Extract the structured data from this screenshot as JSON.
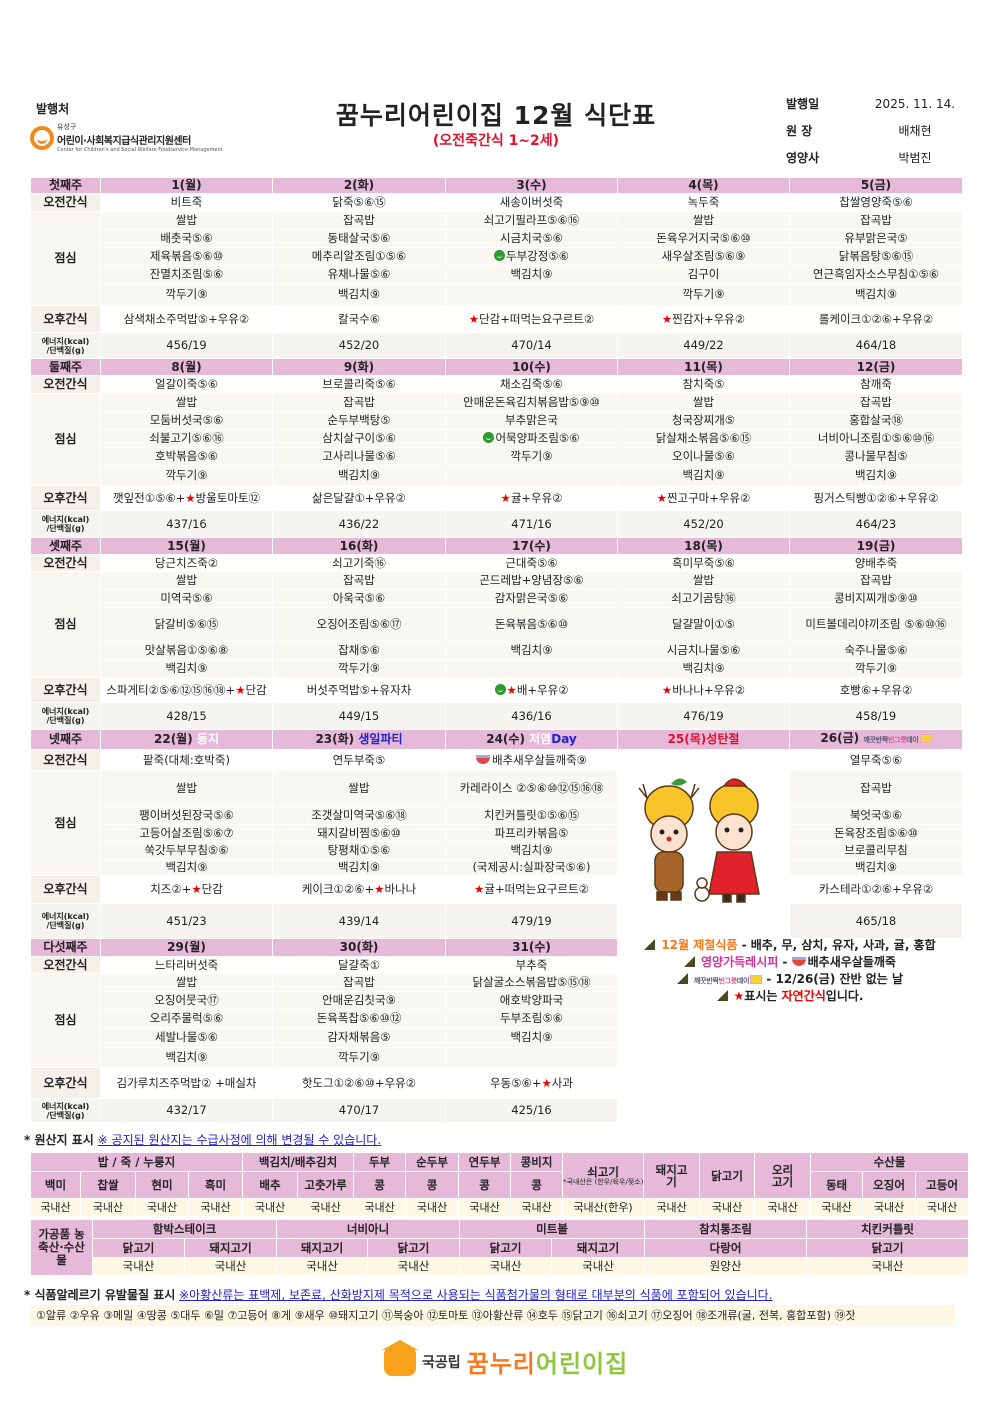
{
  "header": {
    "publisher_label": "발행처",
    "logo": {
      "district": "유성구",
      "name": "어린이·사회복지급식관리지원센터",
      "name_en": "Center for Children's and Social Welfare Foodservice Management"
    },
    "title": "꿈누리어린이집 12월 식단표",
    "subtitle": "(오전죽간식 1~2세)",
    "meta": [
      {
        "label": "발행일",
        "value": "2025. 11. 14."
      },
      {
        "label": "원 장",
        "value": "배채현"
      },
      {
        "label": "영양사",
        "value": "박범진"
      }
    ]
  },
  "row_labels": {
    "morning": "오전간식",
    "lunch": "점심",
    "afternoon": "오후간식",
    "energy_1": "에너지(kcal)",
    "energy_2": "/단백질(g)"
  },
  "colors": {
    "header_bg": "#e6b9d9",
    "star": "#e00000",
    "smile": "#2c9a2c",
    "holiday": "#e0102a",
    "event_blue": "#2222cc"
  },
  "weeks": [
    {
      "label": "첫째주",
      "days": [
        {
          "date": "1(월)"
        },
        {
          "date": "2(화)"
        },
        {
          "date": "3(수)"
        },
        {
          "date": "4(목)"
        },
        {
          "date": "5(금)"
        }
      ],
      "morning": [
        "비트죽",
        "닭죽⑤⑥⑮",
        "새송이버섯죽",
        "녹두죽",
        "찹쌀영양죽⑤⑥"
      ],
      "lunch": [
        [
          "쌀밥",
          "배춧국⑤⑥",
          "제육볶음⑤⑥⑩",
          "잔멸치조림⑤⑥",
          "깍두기⑨"
        ],
        [
          "잡곡밥",
          "동태살국⑤⑥",
          "메추리알조림①⑤⑥",
          "유채나물⑤⑥",
          "백김치⑨"
        ],
        [
          "쇠고기필라프⑤⑥⑯",
          "시금치국⑤⑥",
          {
            "smile": true,
            "text": "두부강정⑤⑥"
          },
          "백김치⑨",
          ""
        ],
        [
          "쌀밥",
          "돈육우거지국⑤⑥⑩",
          "새우살조림⑤⑥⑨",
          "김구이",
          "깍두기⑨"
        ],
        [
          "잡곡밥",
          "유부맑은국⑤",
          "닭볶음탕⑤⑥⑮",
          "연근흑임자소스무침①⑤⑥",
          "백김치⑨"
        ]
      ],
      "afternoon": [
        {
          "text": "삼색채소주먹밥⑤+우유②"
        },
        {
          "text": "칼국수⑥"
        },
        {
          "star": true,
          "text": "단감+떠먹는요구르트②"
        },
        {
          "star": true,
          "text": "찐감자+우유②"
        },
        {
          "text": "롤케이크①②⑥+우유②"
        }
      ],
      "energy": [
        "456/19",
        "452/20",
        "470/14",
        "449/22",
        "464/18"
      ]
    },
    {
      "label": "둘째주",
      "days": [
        {
          "date": "8(월)"
        },
        {
          "date": "9(화)"
        },
        {
          "date": "10(수)"
        },
        {
          "date": "11(목)"
        },
        {
          "date": "12(금)"
        }
      ],
      "morning": [
        "얼갈이죽⑤⑥",
        "브로콜리죽⑤⑥",
        "채소김죽⑤⑥",
        "참치죽⑤",
        "참깨죽"
      ],
      "lunch": [
        [
          "쌀밥",
          "모둠버섯국⑤⑥",
          "쇠불고기⑤⑥⑯",
          "호박볶음⑤⑥",
          "깍두기⑨"
        ],
        [
          "잡곡밥",
          "순두부백탕⑤",
          "삼치살구이⑤⑥",
          "고사리나물⑤⑥",
          "백김치⑨"
        ],
        [
          "안매운돈육김치볶음밥⑤⑨⑩",
          "부추맑은국",
          {
            "smile": true,
            "text": "어묵양파조림⑤⑥"
          },
          "깍두기⑨",
          ""
        ],
        [
          "쌀밥",
          "청국장찌개⑤",
          "닭살채소볶음⑤⑥⑮",
          "오이나물⑤⑥",
          "백김치⑨"
        ],
        [
          "잡곡밥",
          "홍합살국⑱",
          "너비아니조림①⑤⑥⑩⑯",
          "콩나물무침⑤",
          "백김치⑨"
        ]
      ],
      "afternoon": [
        {
          "pre": "깻잎전①⑤⑥+",
          "star": true,
          "text": "방울토마토⑫"
        },
        {
          "text": "삶은달걀①+우유②"
        },
        {
          "star": true,
          "text": "귤+우유②"
        },
        {
          "star": true,
          "text": "찐고구마+우유②"
        },
        {
          "text": "핑거스틱빵①②⑥+우유②"
        }
      ],
      "energy": [
        "437/16",
        "436/22",
        "471/16",
        "452/20",
        "464/23"
      ]
    },
    {
      "label": "셋째주",
      "days": [
        {
          "date": "15(월)"
        },
        {
          "date": "16(화)"
        },
        {
          "date": "17(수)"
        },
        {
          "date": "18(목)"
        },
        {
          "date": "19(금)"
        }
      ],
      "morning": [
        "당근치즈죽②",
        "쇠고기죽⑯",
        "근대죽⑤⑥",
        "흑미무죽⑤⑥",
        "양배추죽"
      ],
      "lunch": [
        [
          "쌀밥",
          "미역국⑤⑥",
          "닭갈비⑤⑥⑮",
          "맛살볶음①⑤⑥⑧",
          "백김치⑨"
        ],
        [
          "잡곡밥",
          "아욱국⑤⑥",
          "오징어조림⑤⑥⑰",
          "잡채⑤⑥",
          "깍두기⑨"
        ],
        [
          "곤드레밥+양념장⑤⑥",
          "감자맑은국⑤⑥",
          "돈육볶음⑤⑥⑩",
          "백김치⑨",
          ""
        ],
        [
          "쌀밥",
          "쇠고기곰탕⑯",
          "달걀말이①⑤",
          "시금치나물⑤⑥",
          "백김치⑨"
        ],
        [
          "잡곡밥",
          "콩비지찌개⑤⑨⑩",
          "미트볼데리야끼조림 ⑤⑥⑩⑯",
          "숙주나물⑤⑥",
          "깍두기⑨"
        ]
      ],
      "afternoon": [
        {
          "pre": "스파게티②⑤⑥⑫⑮⑯⑱+",
          "star": true,
          "text": "단감"
        },
        {
          "text": "버섯주먹밥⑤+유자차"
        },
        {
          "smile": true,
          "star": true,
          "text": "배+우유②"
        },
        {
          "star": true,
          "text": "바나나+우유②"
        },
        {
          "text": "호빵⑥+우유②"
        }
      ],
      "energy": [
        "428/15",
        "449/15",
        "436/16",
        "476/19",
        "458/19"
      ]
    },
    {
      "label": "넷째주",
      "days": [
        {
          "date": "22(월)",
          "tag": "동지",
          "tag_color": "#ffffff"
        },
        {
          "date": "23(화)",
          "tag": "생일파티",
          "tag_color": "#2222cc"
        },
        {
          "date": "24(수)",
          "tag": "저염",
          "tag_color": "#ffffff",
          "tag2": "Day",
          "tag2_color": "#2222cc"
        },
        {
          "date": "25(목)성탄절",
          "holiday": true
        },
        {
          "date": "26(금)",
          "badge": {
            "part1": "깨끗반짝",
            "part2": "빈그릇",
            "part3": "데이"
          }
        }
      ],
      "morning": [
        "팥죽(대체:호박죽)",
        "연두부죽⑤",
        {
          "bowl": true,
          "text": "배추새우살들깨죽⑨"
        },
        null,
        "열무죽⑤⑥"
      ],
      "lunch": [
        [
          "쌀밥",
          "팽이버섯된장국⑤⑥",
          "고등어살조림⑤⑥⑦",
          "쑥갓두부무침⑤⑥",
          "백김치⑨"
        ],
        [
          "쌀밥",
          "조갯살미역국⑤⑥⑱",
          "돼지갈비찜⑤⑥⑩",
          "탕평채①⑤⑥",
          "백김치⑨"
        ],
        [
          "카레라이스 ②⑤⑥⑩⑫⑮⑯⑱",
          "치킨커틀릿①⑤⑥⑮",
          "파프리카볶음⑤",
          "백김치⑨",
          "(국제공시:실파장국⑤⑥)"
        ],
        null,
        [
          "잡곡밥",
          "북엇국⑤⑥",
          "돈육장조림⑤⑥⑩",
          "브로콜리무침",
          "백김치⑨"
        ]
      ],
      "afternoon": [
        {
          "pre": "치즈②+",
          "star": true,
          "text": "단감"
        },
        {
          "pre": "케이크①②⑥+",
          "star": true,
          "text": "바나나"
        },
        {
          "star": true,
          "text": "귤+떠먹는요구르트②"
        },
        null,
        {
          "text": "카스테라①②⑥+우유②"
        }
      ],
      "energy": [
        "451/23",
        "439/14",
        "479/19",
        null,
        "465/18"
      ]
    },
    {
      "label": "다섯째주",
      "days": [
        {
          "date": "29(월)"
        },
        {
          "date": "30(화)"
        },
        {
          "date": "31(수)"
        }
      ],
      "morning": [
        "느타리버섯죽",
        "달걀죽①",
        "부추죽"
      ],
      "lunch": [
        [
          "쌀밥",
          "오징어뭇국⑰",
          "오리주물럭⑤⑥",
          "세발나물⑤⑥",
          "백김치⑨"
        ],
        [
          "잡곡밥",
          "안매운김칫국⑨",
          "돈육폭찹⑤⑥⑩⑫",
          "감자채볶음⑤",
          "깍두기⑨"
        ],
        [
          "닭살굴소스볶음밥⑤⑮⑱",
          "애호박양파국",
          "두부조림⑤⑥",
          "백김치⑨",
          ""
        ]
      ],
      "afternoon": [
        {
          "text": "김가루치즈주먹밥② +매실차"
        },
        {
          "text": "핫도그①②⑥⑩+우유②"
        },
        {
          "pre": "우동⑤⑥+",
          "star": true,
          "text": "사과"
        }
      ],
      "energy": [
        "432/17",
        "470/17",
        "425/16"
      ]
    }
  ],
  "notes": {
    "seasonal_label": "12월 제철식품",
    "seasonal_text": " - 배추, 무, 삼치, 유자, 사과, 귤, 홍합",
    "recipe_label": "영양가득레시피",
    "recipe_text": "배추새우살들깨죽",
    "badge": {
      "part1": "깨끗반짝",
      "part2": "빈그릇",
      "part3": "데이"
    },
    "badge_text": " - 12/26(금) 잔반 없는 날",
    "star_text_1": "표시는 ",
    "star_text_2": "자연간식",
    "star_text_3": "입니다."
  },
  "origin": {
    "title": "* 원산지 표시",
    "notice": "※ 공지된 원산지는 수급사정에 의해 변경될 수 있습니다.",
    "groups": [
      "밥 / 죽 / 누룽지",
      "백김치/배추김치",
      "두부",
      "순두부",
      "연두부",
      "콩비지",
      "쇠고기",
      "돼지고기",
      "닭고기",
      "오리고기",
      "수산물"
    ],
    "beef_sub": "*국내산은 (한우/육우/젖소) 표기",
    "items": [
      "백미",
      "찹쌀",
      "현미",
      "흑미",
      "배추",
      "고춧가루",
      "콩",
      "콩",
      "콩",
      "콩",
      "동태",
      "오징어",
      "고등어"
    ],
    "values": [
      "국내산",
      "국내산",
      "국내산",
      "국내산",
      "국내산",
      "국내산",
      "국내산",
      "국내산",
      "국내산",
      "국내산",
      "국내산(한우)",
      "국내산",
      "국내산",
      "국내산",
      "국내산",
      "국내산",
      "국내산"
    ],
    "processed_label": "가공품 농축산·수산물",
    "processed": [
      {
        "name": "함박스테이크",
        "parts": [
          {
            "item": "닭고기",
            "origin": "국내산"
          },
          {
            "item": "돼지고기",
            "origin": "국내산"
          }
        ]
      },
      {
        "name": "너비아니",
        "parts": [
          {
            "item": "돼지고기",
            "origin": "국내산"
          },
          {
            "item": "닭고기",
            "origin": "국내산"
          }
        ]
      },
      {
        "name": "미트볼",
        "parts": [
          {
            "item": "닭고기",
            "origin": "국내산"
          },
          {
            "item": "돼지고기",
            "origin": "국내산"
          }
        ]
      },
      {
        "name": "참치통조림",
        "parts": [
          {
            "item": "다랑어",
            "origin": "원양산"
          }
        ]
      },
      {
        "name": "치킨커틀릿",
        "parts": [
          {
            "item": "닭고기",
            "origin": "국내산"
          }
        ]
      }
    ]
  },
  "allergy": {
    "title": "* 식품알레르기 유발물질 표시",
    "notice": "※아황산류는 표백제, 보존료, 산화방지제 목적으로 사용되는 식품첨가물의 형태로 대부분의 식품에 포함되어 있습니다.",
    "list": "①알류 ②우유 ③메밀 ④땅콩 ⑤대두 ⑥밀 ⑦고등어 ⑧게 ⑨새우 ⑩돼지고기 ⑪복숭아 ⑫토마토 ⑬아황산류 ⑭호두 ⑮닭고기 ⑯쇠고기 ⑰오징어 ⑱조개류(굴, 전복, 홍합포함) ⑲잣"
  },
  "footer": {
    "prefix": "국공립",
    "name_1": "꿈누리",
    "name_2": "어린이집"
  }
}
